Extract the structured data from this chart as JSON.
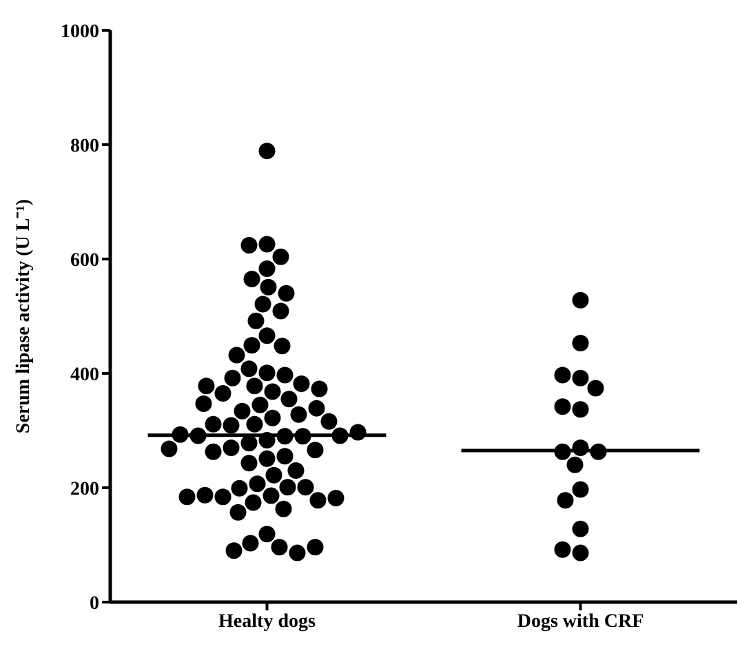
{
  "chart_data": {
    "type": "scatter",
    "ylabel": "Serum lipase activity (U L⁻¹)",
    "categories": [
      "Healty dogs",
      "Dogs with CRF"
    ],
    "ylim": [
      0,
      1000
    ],
    "yticks": [
      0,
      200,
      400,
      600,
      800,
      1000
    ],
    "grid": false,
    "marker": "circle",
    "series": [
      {
        "color": "#000000",
        "x": [
          "Healty dogs",
          "Healty dogs",
          "Healty dogs",
          "Healty dogs",
          "Healty dogs",
          "Healty dogs",
          "Healty dogs",
          "Healty dogs",
          "Healty dogs",
          "Healty dogs",
          "Healty dogs",
          "Healty dogs",
          "Healty dogs",
          "Healty dogs",
          "Healty dogs",
          "Healty dogs",
          "Healty dogs",
          "Healty dogs",
          "Healty dogs",
          "Healty dogs",
          "Healty dogs",
          "Healty dogs",
          "Healty dogs",
          "Healty dogs",
          "Healty dogs",
          "Healty dogs",
          "Healty dogs",
          "Healty dogs",
          "Healty dogs",
          "Healty dogs",
          "Healty dogs",
          "Healty dogs",
          "Healty dogs",
          "Healty dogs",
          "Healty dogs",
          "Healty dogs",
          "Healty dogs",
          "Healty dogs",
          "Healty dogs",
          "Healty dogs",
          "Healty dogs",
          "Healty dogs",
          "Healty dogs",
          "Healty dogs",
          "Healty dogs",
          "Healty dogs",
          "Healty dogs",
          "Healty dogs",
          "Healty dogs",
          "Healty dogs",
          "Healty dogs",
          "Healty dogs",
          "Healty dogs",
          "Healty dogs",
          "Healty dogs",
          "Healty dogs",
          "Healty dogs",
          "Healty dogs",
          "Healty dogs",
          "Healty dogs",
          "Healty dogs",
          "Healty dogs",
          "Healty dogs",
          "Healty dogs",
          "Healty dogs",
          "Healty dogs",
          "Healty dogs",
          "Healty dogs",
          "Healty dogs",
          "Healty dogs",
          "Healty dogs",
          "Healty dogs",
          "Dogs with CRF",
          "Dogs with CRF",
          "Dogs with CRF",
          "Dogs with CRF",
          "Dogs with CRF",
          "Dogs with CRF",
          "Dogs with CRF",
          "Dogs with CRF",
          "Dogs with CRF",
          "Dogs with CRF",
          "Dogs with CRF",
          "Dogs with CRF",
          "Dogs with CRF",
          "Dogs with CRF",
          "Dogs with CRF",
          "Dogs with CRF"
        ],
        "values": [
          789,
          626,
          624,
          604,
          583,
          565,
          551,
          540,
          521,
          509,
          492,
          466,
          449,
          448,
          432,
          401,
          408,
          397,
          392,
          382,
          378,
          368,
          365,
          373,
          378,
          355,
          345,
          334,
          322,
          328,
          339,
          347,
          311,
          309,
          311,
          316,
          283,
          290,
          290,
          291,
          291,
          293,
          297,
          278,
          270,
          266,
          263,
          268,
          251,
          255,
          243,
          230,
          222,
          207,
          201,
          199,
          201,
          186,
          184,
          178,
          187,
          174,
          182,
          184,
          163,
          157,
          119,
          103,
          96,
          86,
          90,
          96,
          528,
          453,
          392,
          397,
          374,
          337,
          342,
          270,
          263,
          263,
          240,
          197,
          178,
          128,
          86,
          92
        ]
      }
    ],
    "ref_lines": [
      {
        "axis": "y",
        "value": 292,
        "color": "#000000"
      },
      {
        "axis": "y",
        "value": 265,
        "color": "#000000"
      }
    ]
  }
}
